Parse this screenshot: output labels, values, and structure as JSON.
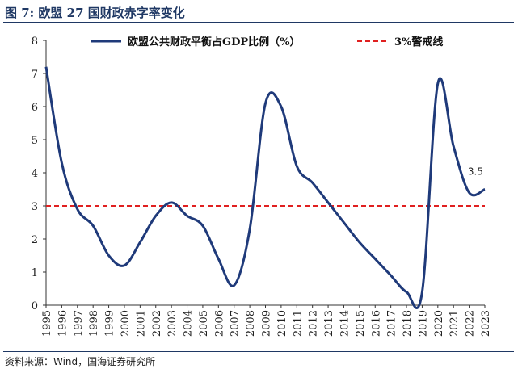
{
  "header": {
    "title": "图 7:  欧盟 27 国财政赤字率变化"
  },
  "footer": {
    "source": "资料来源：Wind，国海证券研究所"
  },
  "chart_data": {
    "type": "line",
    "title": "欧盟27国财政赤字率变化",
    "xlabel": "",
    "ylabel": "",
    "ylim": [
      0,
      8
    ],
    "yticks": [
      "0",
      "1",
      "2",
      "3",
      "4",
      "5",
      "6",
      "7",
      "8"
    ],
    "categories": [
      "1995",
      "1996",
      "1997",
      "1998",
      "1999",
      "2000",
      "2001",
      "2002",
      "2003",
      "2004",
      "2005",
      "2006",
      "2007",
      "2008",
      "2009",
      "2010",
      "2011",
      "2012",
      "2013",
      "2014",
      "2015",
      "2016",
      "2017",
      "2018",
      "2019",
      "2020",
      "2021",
      "2022",
      "2023"
    ],
    "series": [
      {
        "name": "欧盟公共财政平衡占GDP比例（%）",
        "color": "#1f3a7a",
        "values": [
          7.2,
          4.3,
          2.9,
          2.4,
          1.5,
          1.2,
          1.9,
          2.7,
          3.1,
          2.7,
          2.4,
          1.4,
          0.6,
          2.3,
          6.1,
          6.0,
          4.2,
          3.7,
          3.1,
          2.5,
          1.9,
          1.4,
          0.9,
          0.4,
          0.4,
          6.7,
          4.8,
          3.4,
          3.5
        ]
      },
      {
        "name": "3%警戒线",
        "color": "#e02020",
        "style": "dashed",
        "values": [
          3,
          3,
          3,
          3,
          3,
          3,
          3,
          3,
          3,
          3,
          3,
          3,
          3,
          3,
          3,
          3,
          3,
          3,
          3,
          3,
          3,
          3,
          3,
          3,
          3,
          3,
          3,
          3,
          3
        ]
      }
    ],
    "annotations": [
      {
        "category": "2023",
        "value": 3.5,
        "text": "3.5"
      }
    ],
    "legend": "top"
  }
}
